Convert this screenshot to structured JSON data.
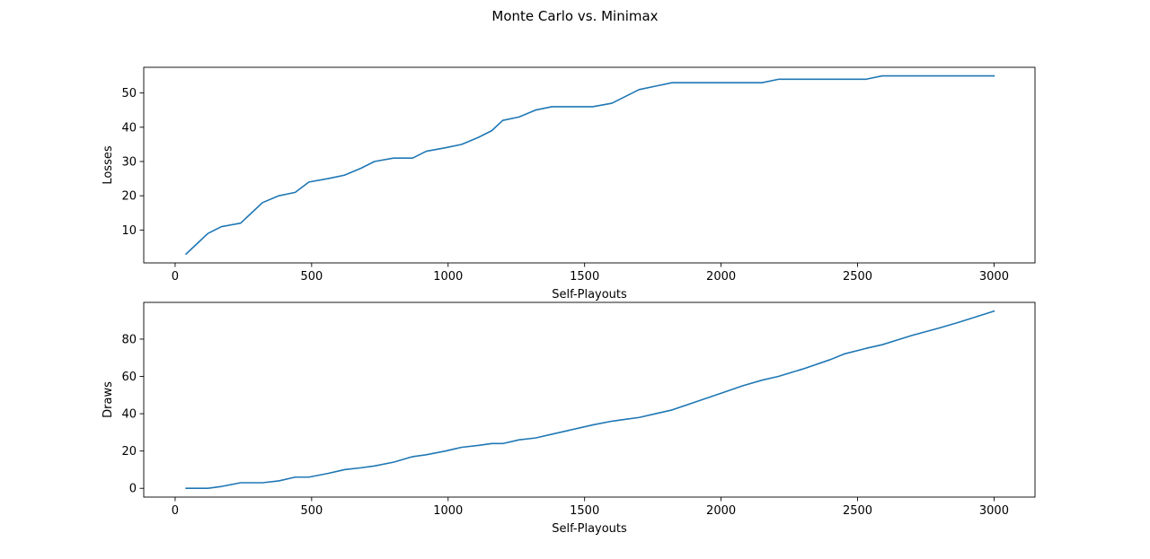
{
  "figure": {
    "title": "Monte Carlo vs. Minimax"
  },
  "colors": {
    "line": "#1f77b4",
    "axes": "#000000"
  },
  "chart_data": [
    {
      "type": "line",
      "xlabel": "Self-Playouts",
      "ylabel": "Losses",
      "xlim": [
        -115,
        3150
      ],
      "ylim": [
        0.4,
        57.5
      ],
      "xticks": [
        0,
        500,
        1000,
        1500,
        2000,
        2500,
        3000
      ],
      "yticks": [
        10,
        20,
        30,
        40,
        50
      ],
      "grid": false,
      "x": [
        40,
        80,
        120,
        170,
        240,
        280,
        320,
        380,
        440,
        490,
        560,
        620,
        680,
        730,
        800,
        870,
        920,
        990,
        1050,
        1110,
        1160,
        1200,
        1260,
        1320,
        1380,
        1440,
        1530,
        1600,
        1650,
        1700,
        1760,
        1820,
        1900,
        2000,
        2080,
        2150,
        2210,
        2300,
        2400,
        2530,
        2590,
        2700,
        2800,
        2900,
        3000
      ],
      "y": [
        3,
        6,
        9,
        11,
        12,
        15,
        18,
        20,
        21,
        24,
        25,
        26,
        28,
        30,
        31,
        31,
        33,
        34,
        35,
        37,
        39,
        42,
        43,
        45,
        46,
        46,
        46,
        47,
        49,
        51,
        52,
        53,
        53,
        53,
        53,
        53,
        54,
        54,
        54,
        54,
        55,
        55,
        55,
        55,
        55
      ]
    },
    {
      "type": "line",
      "xlabel": "Self-Playouts",
      "ylabel": "Draws",
      "xlim": [
        -115,
        3150
      ],
      "ylim": [
        -4.7,
        99.7
      ],
      "xticks": [
        0,
        500,
        1000,
        1500,
        2000,
        2500,
        3000
      ],
      "yticks": [
        0,
        20,
        40,
        60,
        80
      ],
      "grid": false,
      "x": [
        40,
        80,
        120,
        170,
        240,
        280,
        320,
        380,
        440,
        490,
        560,
        620,
        680,
        730,
        800,
        870,
        920,
        990,
        1050,
        1110,
        1160,
        1200,
        1260,
        1320,
        1380,
        1440,
        1530,
        1600,
        1650,
        1700,
        1760,
        1820,
        1900,
        2000,
        2080,
        2150,
        2210,
        2300,
        2400,
        2450,
        2530,
        2590,
        2700,
        2800,
        2870,
        3000
      ],
      "y": [
        0,
        0,
        0,
        1,
        3,
        3,
        3,
        4,
        6,
        6,
        8,
        10,
        11,
        12,
        14,
        17,
        18,
        20,
        22,
        23,
        24,
        24,
        26,
        27,
        29,
        31,
        34,
        36,
        37,
        38,
        40,
        42,
        46,
        51,
        55,
        58,
        60,
        64,
        69,
        72,
        75,
        77,
        82,
        86,
        89,
        95
      ]
    }
  ]
}
